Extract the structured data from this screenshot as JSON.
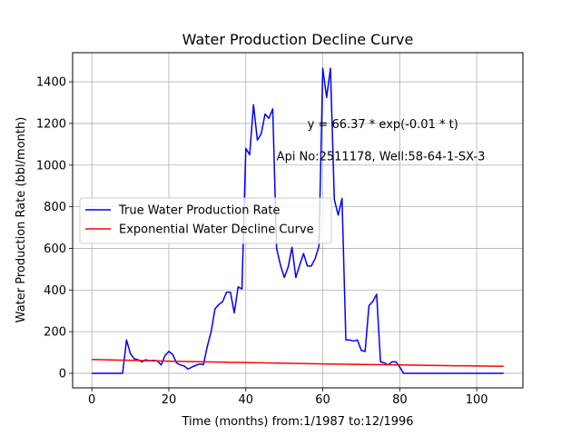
{
  "chart_data": {
    "type": "line",
    "title": "Water Production Decline Curve",
    "xlabel": "Time (months) from:1/1987 to:12/1996",
    "ylabel": "Water Production Rate (bbl/month)",
    "xlim": [
      -5,
      112
    ],
    "ylim": [
      -70,
      1540
    ],
    "xticks": [
      0,
      20,
      40,
      60,
      80,
      100
    ],
    "yticks": [
      0,
      200,
      400,
      600,
      800,
      1000,
      1200,
      1400
    ],
    "grid": true,
    "legend_position": "center-left",
    "annotations": [
      {
        "text": "y = 66.37 * exp(-0.01 * t)",
        "x": 56,
        "y": 1200
      },
      {
        "text": "Api No:2511178, Well:58-64-1-SX-3",
        "x": 48,
        "y": 1045
      }
    ],
    "series": [
      {
        "name": "True Water Production Rate",
        "color": "#0000ff",
        "x": [
          0,
          1,
          2,
          3,
          4,
          5,
          6,
          7,
          8,
          9,
          10,
          11,
          12,
          13,
          14,
          15,
          16,
          17,
          18,
          19,
          20,
          21,
          22,
          23,
          24,
          25,
          26,
          27,
          28,
          29,
          30,
          31,
          32,
          33,
          34,
          35,
          36,
          37,
          38,
          39,
          40,
          41,
          42,
          43,
          44,
          45,
          46,
          47,
          48,
          49,
          50,
          51,
          52,
          53,
          54,
          55,
          56,
          57,
          58,
          59,
          60,
          61,
          62,
          63,
          64,
          65,
          66,
          67,
          68,
          69,
          70,
          71,
          72,
          73,
          74,
          75,
          76,
          77,
          78,
          79,
          80,
          81,
          82,
          83,
          84,
          85,
          86,
          87,
          88,
          89,
          90,
          91,
          92,
          93,
          94,
          95,
          96,
          97,
          98,
          99,
          100,
          101,
          102,
          103,
          104,
          105,
          106,
          107
        ],
        "y": [
          0,
          0,
          0,
          0,
          0,
          0,
          0,
          0,
          0,
          160,
          95,
          70,
          65,
          55,
          65,
          60,
          62,
          60,
          40,
          85,
          105,
          90,
          50,
          40,
          35,
          20,
          30,
          38,
          45,
          42,
          130,
          200,
          310,
          330,
          345,
          390,
          390,
          290,
          415,
          405,
          1080,
          1050,
          1290,
          1120,
          1150,
          1245,
          1225,
          1270,
          600,
          520,
          460,
          510,
          605,
          460,
          520,
          575,
          515,
          515,
          550,
          610,
          1465,
          1325,
          1465,
          835,
          760,
          840,
          160,
          160,
          155,
          160,
          110,
          105,
          325,
          345,
          380,
          55,
          50,
          40,
          55,
          55,
          30,
          0,
          0,
          0,
          0,
          0,
          0,
          0,
          0,
          0,
          0,
          0,
          0,
          0,
          0,
          0,
          0,
          0,
          0,
          0,
          0,
          0,
          0,
          0,
          0,
          0,
          0,
          0
        ]
      },
      {
        "name": "Exponential Water Decline Curve",
        "color": "#ff0000",
        "fit": {
          "a": 66.37,
          "b": -0.00635
        },
        "x": [
          0,
          10,
          20,
          30,
          40,
          50,
          60,
          70,
          80,
          90,
          100,
          107
        ],
        "y": [
          66.37,
          62.3,
          58.4,
          54.8,
          51.5,
          48.3,
          45.3,
          42.5,
          39.9,
          37.5,
          35.2,
          33.6
        ]
      }
    ]
  }
}
